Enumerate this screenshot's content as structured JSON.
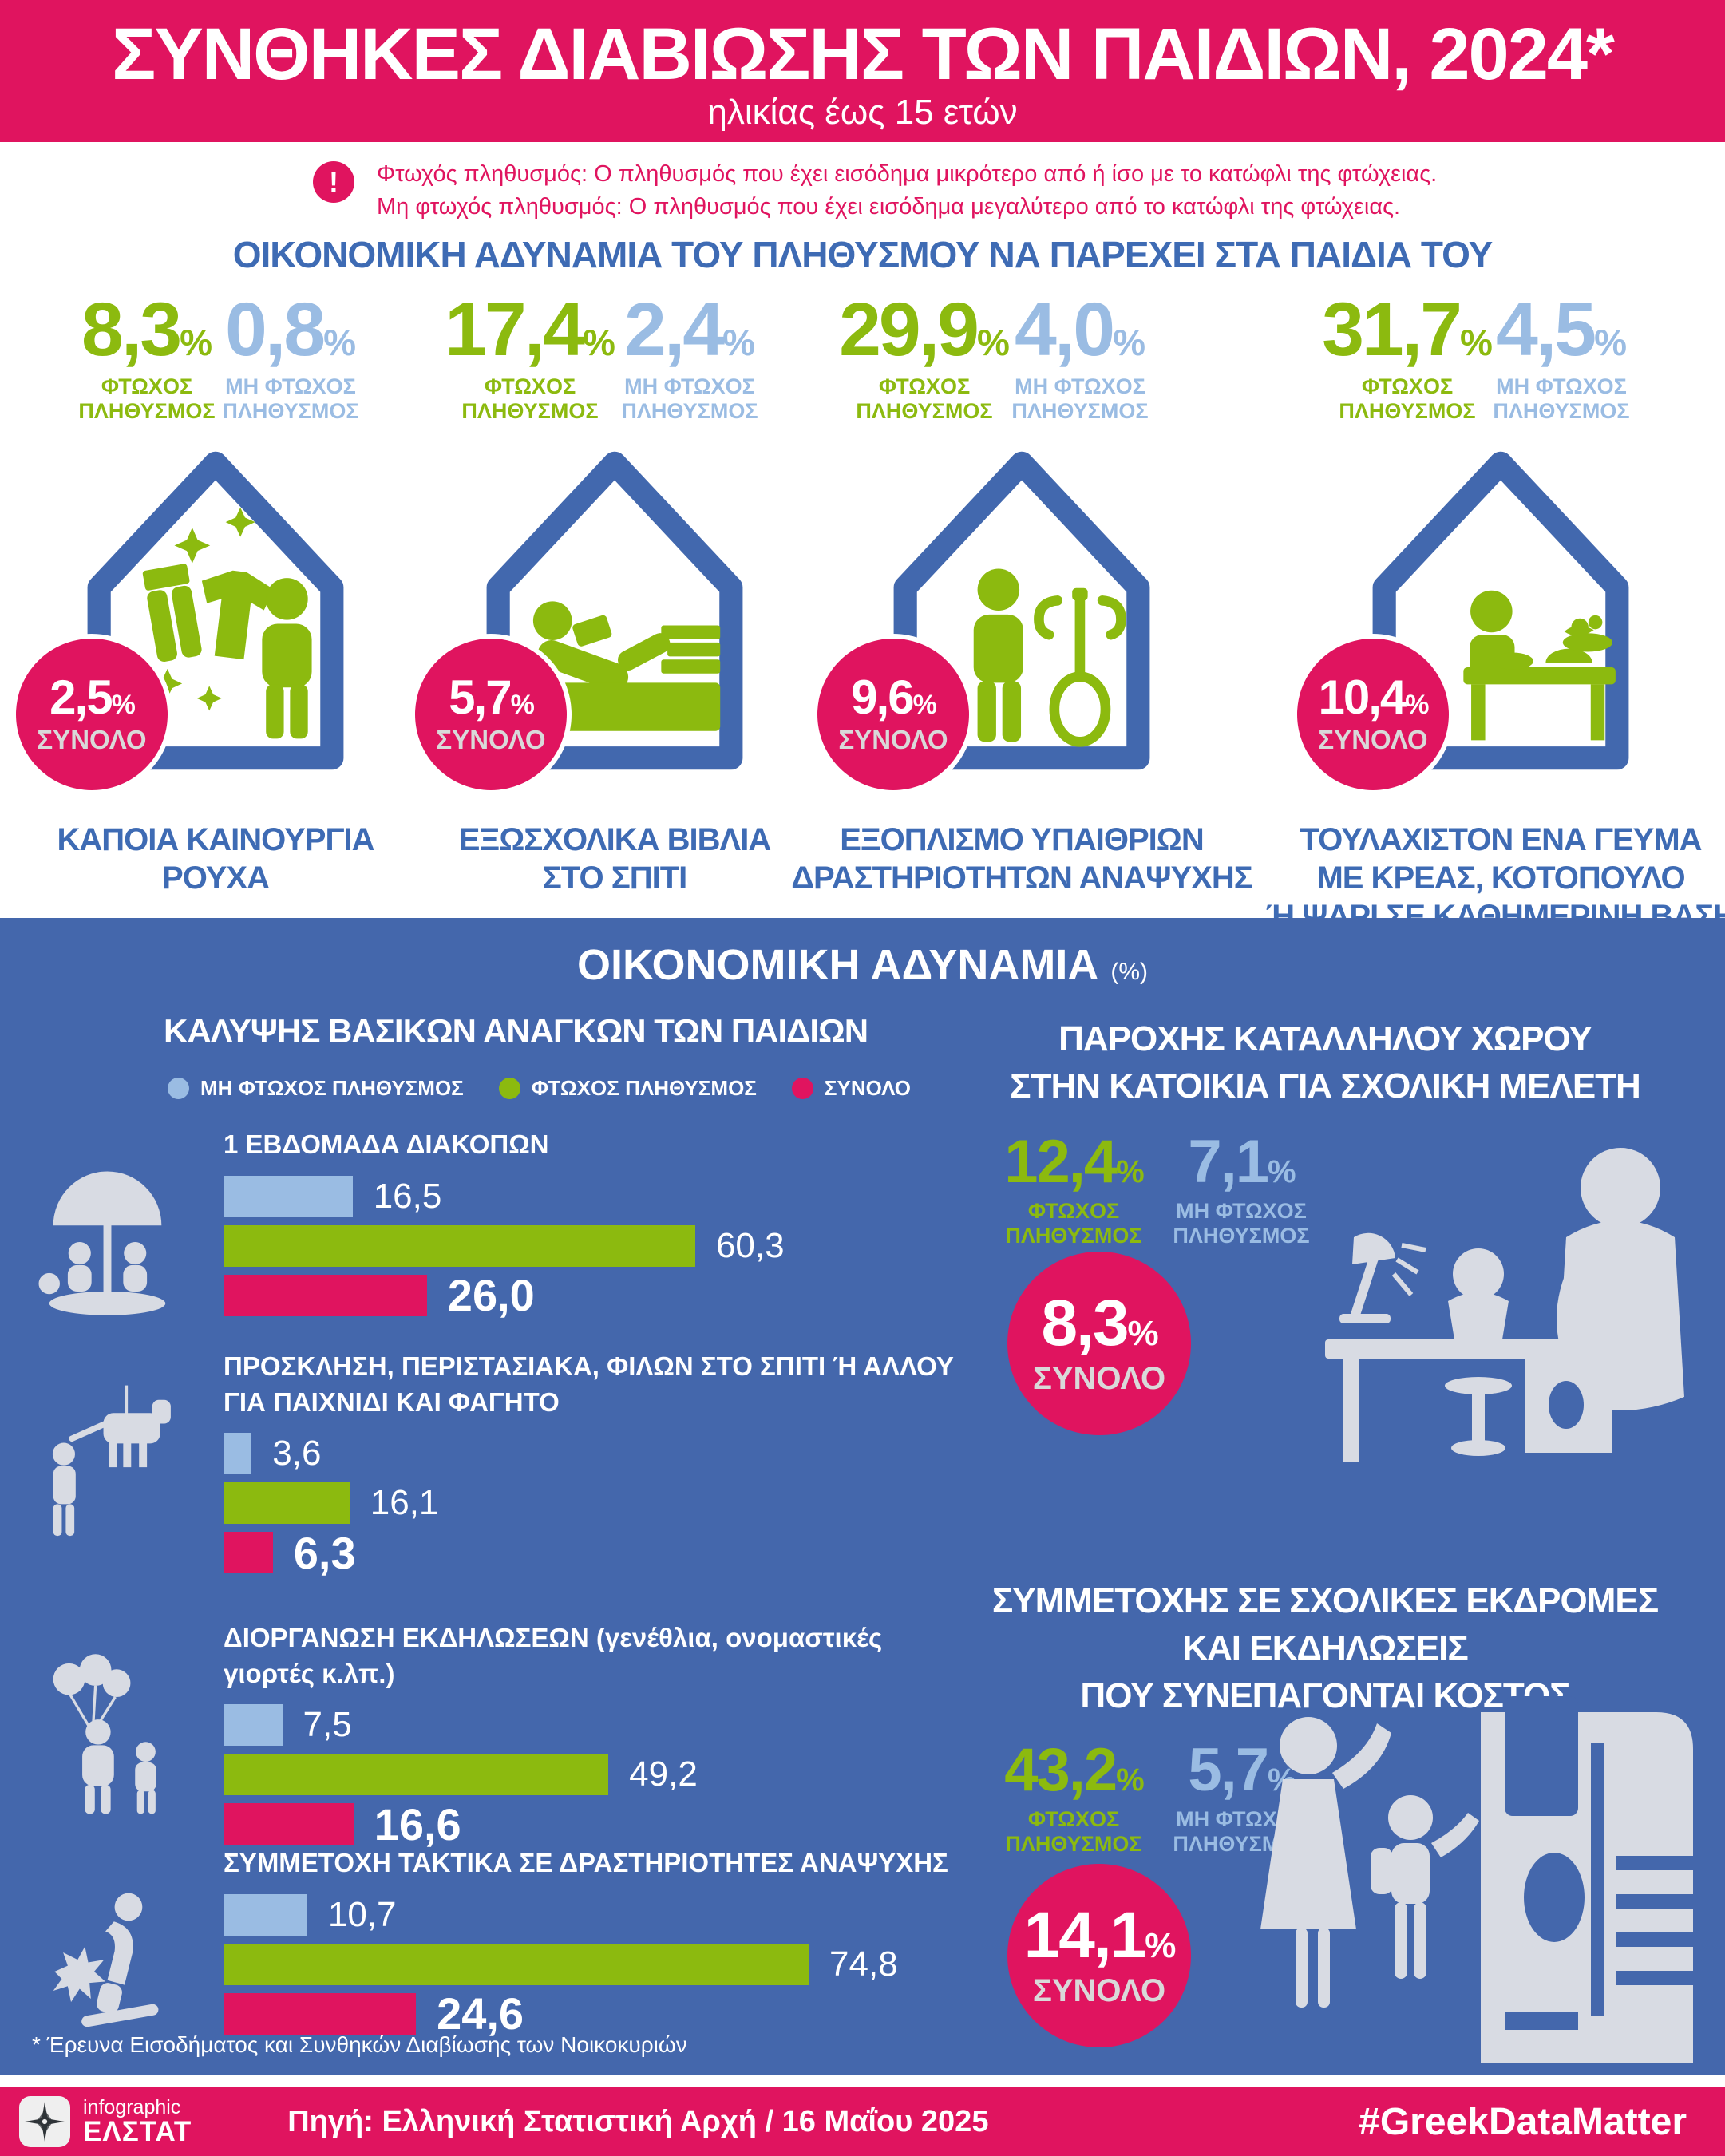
{
  "labels": {
    "poor": "ΦΤΩΧΟΣ ΠΛΗΘΥΣΜΟΣ",
    "nonpoor": "ΜΗ ΦΤΩΧΟΣ ΠΛΗΘΥΣΜΟΣ",
    "total": "ΣΥΝΟΛΟ",
    "unit": "%"
  },
  "colors": {
    "pink": "#E0145F",
    "green": "#8CBA0F",
    "light_blue": "#9ABCE3",
    "section_blue": "#4467AC",
    "heading_blue": "#3E6BB4"
  },
  "header": {
    "title": "ΣΥΝΘΗΚΕΣ ΔΙΑΒΙΩΣΗΣ ΤΩΝ ΠΑΙΔΙΩΝ, 2024*",
    "subtitle": "ηλικίας έως 15 ετών"
  },
  "note": {
    "glyph": "!",
    "line1": "Φτωχός πληθυσμός: Ο πληθυσμός που έχει εισόδημα μικρότερο από ή ίσο με το κατώφλι της φτώχειας.",
    "line2": "Μη φτωχός πληθυσμός: Ο πληθυσμός που έχει εισόδημα μεγαλύτερο από το κατώφλι της φτώχειας."
  },
  "section1": {
    "title": "ΟΙΚΟΝΟΜΙΚΗ ΑΔΥΝΑΜΙΑ ΤΟΥ ΠΛΗΘΥΣΜΟΥ ΝΑ ΠΑΡΕΧΕΙ ΣΤΑ ΠΑΙΔΙΑ ΤΟΥ",
    "items": [
      {
        "poor": "8,3",
        "nonpoor": "0,8",
        "total": "2,5",
        "caption": "ΚΑΠΟΙΑ ΚΑΙΝΟΥΡΓΙΑ\nΡΟΥΧΑ"
      },
      {
        "poor": "17,4",
        "nonpoor": "2,4",
        "total": "5,7",
        "caption": "ΕΞΩΣΧΟΛΙΚΑ ΒΙΒΛΙΑ\nΣΤΟ ΣΠΙΤΙ"
      },
      {
        "poor": "29,9",
        "nonpoor": "4,0",
        "total": "9,6",
        "caption": "ΕΞΟΠΛΙΣΜΟ ΥΠΑΙΘΡΙΩΝ\nΔΡΑΣΤΗΡΙΟΤΗΤΩΝ ΑΝΑΨΥΧΗΣ"
      },
      {
        "poor": "31,7",
        "nonpoor": "4,5",
        "total": "10,4",
        "caption": "ΤΟΥΛΑΧΙΣΤΟΝ ΕΝΑ ΓΕΥΜΑ\nΜΕ ΚΡΕΑΣ, ΚΟΤΟΠΟΥΛΟ\nΉ ΨΑΡΙ ΣΕ ΚΑΘΗΜΕΡΙΝΗ ΒΑΣΗ"
      }
    ]
  },
  "section2": {
    "title": "ΟΙΚΟΝΟΜΙΚΗ ΑΔΥΝΑΜΙΑ",
    "title_unit": "(%)",
    "left": {
      "title": "ΚΑΛΥΨΗΣ ΒΑΣΙΚΩΝ ΑΝΑΓΚΩΝ ΤΩΝ ΠΑΙΔΙΩΝ",
      "charts": [
        {
          "title": "1 ΕΒΔΟΜΑΔΑ ΔΙΑΚΟΠΩΝ",
          "nonpoor": "16,5",
          "poor": "60,3",
          "total": "26,0"
        },
        {
          "title": "ΠΡΟΣΚΛΗΣΗ, ΠΕΡΙΣΤΑΣΙΑΚΑ, ΦΙΛΩΝ ΣΤΟ ΣΠΙΤΙ Ή ΑΛΛΟΥ\nΓΙΑ ΠΑΙΧΝΙΔΙ ΚΑΙ ΦΑΓΗΤΟ",
          "nonpoor": "3,6",
          "poor": "16,1",
          "total": "6,3"
        },
        {
          "title": "ΔΙΟΡΓΑΝΩΣΗ ΕΚΔΗΛΩΣΕΩΝ (γενέθλια, ονομαστικές γιορτές κ.λπ.)",
          "nonpoor": "7,5",
          "poor": "49,2",
          "total": "16,6"
        },
        {
          "title": "ΣΥΜΜΕΤΟΧΗ ΤΑΚΤΙΚΑ ΣΕ ΔΡΑΣΤΗΡΙΟΤΗΤΕΣ ΑΝΑΨΥΧΗΣ",
          "nonpoor": "10,7",
          "poor": "74,8",
          "total": "24,6"
        }
      ]
    },
    "right": {
      "blocks": [
        {
          "title": "ΠΑΡΟΧΗΣ ΚΑΤΑΛΛΗΛΟΥ ΧΩΡΟΥ\nΣΤΗΝ ΚΑΤΟΙΚΙΑ ΓΙΑ ΣΧΟΛΙΚΗ ΜΕΛΕΤΗ",
          "poor": "12,4",
          "nonpoor": "7,1",
          "total": "8,3"
        },
        {
          "title": "ΣΥΜΜΕΤΟΧΗΣ ΣΕ ΣΧΟΛΙΚΕΣ ΕΚΔΡΟΜΕΣ\nΚΑΙ ΕΚΔΗΛΩΣΕΙΣ\nΠΟΥ ΣΥΝΕΠΑΓΟΝΤΑΙ ΚΟΣΤΟΣ",
          "poor": "43,2",
          "nonpoor": "5,7",
          "total": "14,1"
        }
      ]
    },
    "footnote": "* Έρευνα Εισοδήματος και Συνθηκών Διαβίωσης των Νοικοκυριών"
  },
  "footer": {
    "logo_line1": "infographic",
    "logo_line2": "ΕΛΣΤΑΤ",
    "source": "Πηγή: Ελληνική Στατιστική Αρχή  / 16 Μαΐου 2025",
    "hashtag": "#GreekDataMatter"
  },
  "chart_data": [
    {
      "type": "pictogram",
      "title": "ΟΙΚΟΝΟΜΙΚΗ ΑΔΥΝΑΜΙΑ ΤΟΥ ΠΛΗΘΥΣΜΟΥ ΝΑ ΠΑΡΕΧΕΙ ΣΤΑ ΠΑΙΔΙΑ ΤΟΥ",
      "unit": "%",
      "categories": [
        "ΚΑΠΟΙΑ ΚΑΙΝΟΥΡΓΙΑ ΡΟΥΧΑ",
        "ΕΞΩΣΧΟΛΙΚΑ ΒΙΒΛΙΑ ΣΤΟ ΣΠΙΤΙ",
        "ΕΞΟΠΛΙΣΜΟ ΥΠΑΙΘΡΙΩΝ ΔΡΑΣΤΗΡΙΟΤΗΤΩΝ ΑΝΑΨΥΧΗΣ",
        "ΤΟΥΛΑΧΙΣΤΟΝ ΕΝΑ ΓΕΥΜΑ ΜΕ ΚΡΕΑΣ, ΚΟΤΟΠΟΥΛΟ Ή ΨΑΡΙ ΣΕ ΚΑΘΗΜΕΡΙΝΗ ΒΑΣΗ"
      ],
      "series": [
        {
          "name": "ΦΤΩΧΟΣ ΠΛΗΘΥΣΜΟΣ",
          "values": [
            8.3,
            17.4,
            29.9,
            31.7
          ]
        },
        {
          "name": "ΜΗ ΦΤΩΧΟΣ ΠΛΗΘΥΣΜΟΣ",
          "values": [
            0.8,
            2.4,
            4.0,
            4.5
          ]
        },
        {
          "name": "ΣΥΝΟΛΟ",
          "values": [
            2.5,
            5.7,
            9.6,
            10.4
          ]
        }
      ]
    },
    {
      "type": "bar",
      "orientation": "horizontal",
      "title": "ΟΙΚΟΝΟΜΙΚΗ ΑΔΥΝΑΜΙΑ (%) — ΚΑΛΥΨΗΣ ΒΑΣΙΚΩΝ ΑΝΑΓΚΩΝ ΤΩΝ ΠΑΙΔΙΩΝ",
      "unit": "%",
      "xlim": [
        0,
        80
      ],
      "grid": false,
      "legend_position": "top",
      "categories": [
        "1 ΕΒΔΟΜΑΔΑ ΔΙΑΚΟΠΩΝ",
        "ΠΡΟΣΚΛΗΣΗ, ΠΕΡΙΣΤΑΣΙΑΚΑ, ΦΙΛΩΝ ΣΤΟ ΣΠΙΤΙ Ή ΑΛΛΟΥ ΓΙΑ ΠΑΙΧΝΙΔΙ ΚΑΙ ΦΑΓΗΤΟ",
        "ΔΙΟΡΓΑΝΩΣΗ ΕΚΔΗΛΩΣΕΩΝ (γενέθλια, ονομαστικές γιορτές κ.λπ.)",
        "ΣΥΜΜΕΤΟΧΗ ΤΑΚΤΙΚΑ ΣΕ ΔΡΑΣΤΗΡΙΟΤΗΤΕΣ ΑΝΑΨΥΧΗΣ"
      ],
      "series": [
        {
          "name": "ΜΗ ΦΤΩΧΟΣ ΠΛΗΘΥΣΜΟΣ",
          "color": "#9ABCE3",
          "values": [
            16.5,
            3.6,
            7.5,
            10.7
          ]
        },
        {
          "name": "ΦΤΩΧΟΣ ΠΛΗΘΥΣΜΟΣ",
          "color": "#8CBA0F",
          "values": [
            60.3,
            16.1,
            49.2,
            74.8
          ]
        },
        {
          "name": "ΣΥΝΟΛΟ",
          "color": "#E0145F",
          "values": [
            26.0,
            6.3,
            16.6,
            24.6
          ]
        }
      ]
    },
    {
      "type": "pictogram",
      "title": "ΟΙΚΟΝΟΜΙΚΗ ΑΔΥΝΑΜΙΑ (%)",
      "unit": "%",
      "categories": [
        "ΠΑΡΟΧΗΣ ΚΑΤΑΛΛΗΛΟΥ ΧΩΡΟΥ ΣΤΗΝ ΚΑΤΟΙΚΙΑ ΓΙΑ ΣΧΟΛΙΚΗ ΜΕΛΕΤΗ",
        "ΣΥΜΜΕΤΟΧΗΣ ΣΕ ΣΧΟΛΙΚΕΣ ΕΚΔΡΟΜΕΣ ΚΑΙ ΕΚΔΗΛΩΣΕΙΣ ΠΟΥ ΣΥΝΕΠΑΓΟΝΤΑΙ ΚΟΣΤΟΣ"
      ],
      "series": [
        {
          "name": "ΦΤΩΧΟΣ ΠΛΗΘΥΣΜΟΣ",
          "values": [
            12.4,
            43.2
          ]
        },
        {
          "name": "ΜΗ ΦΤΩΧΟΣ ΠΛΗΘΥΣΜΟΣ",
          "values": [
            7.1,
            5.7
          ]
        },
        {
          "name": "ΣΥΝΟΛΟ",
          "values": [
            8.3,
            14.1
          ]
        }
      ]
    }
  ]
}
